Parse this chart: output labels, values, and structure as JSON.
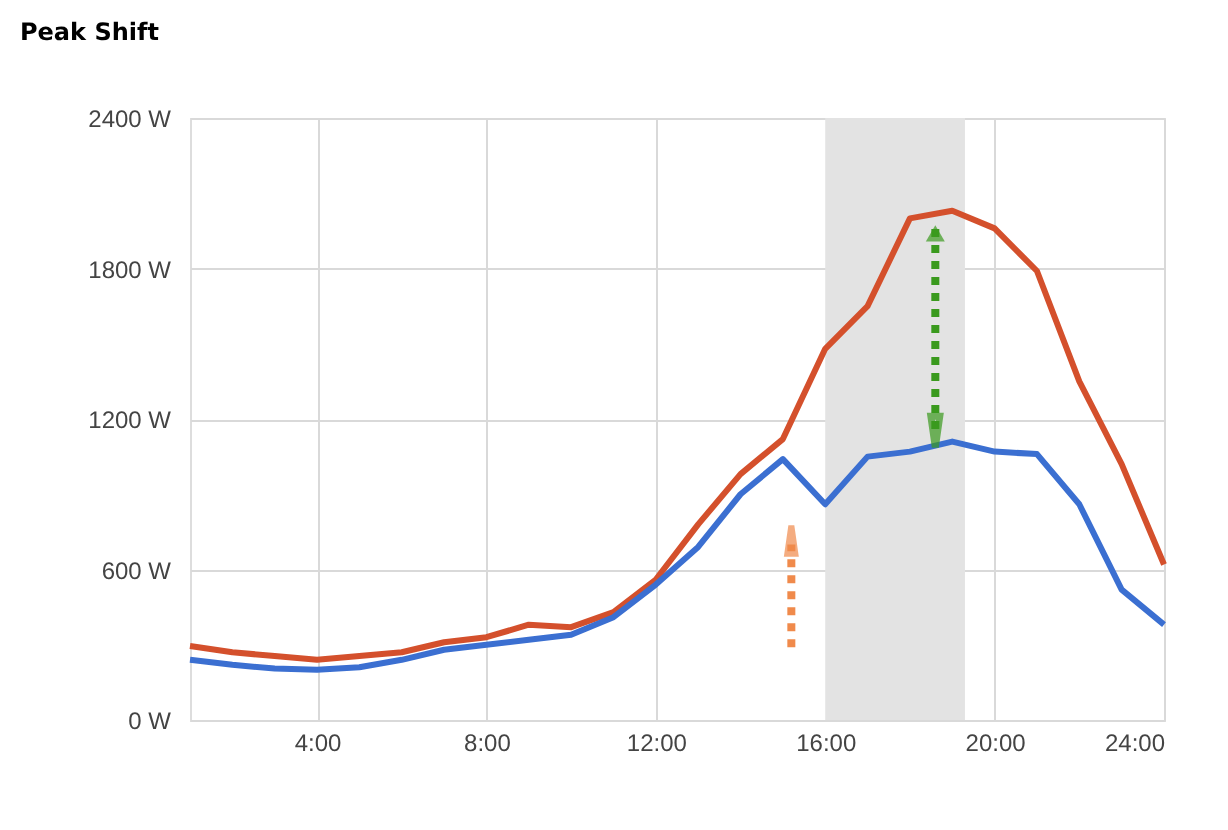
{
  "chart_data": {
    "type": "line",
    "title": "Peak Shift",
    "x": [
      1,
      2,
      3,
      4,
      5,
      6,
      7,
      8,
      9,
      10,
      11,
      12,
      13,
      14,
      15,
      16,
      17,
      18,
      19,
      20,
      21,
      22,
      23,
      24
    ],
    "series": [
      {
        "color": "#d4502c",
        "values": [
          295,
          270,
          255,
          240,
          255,
          270,
          310,
          330,
          380,
          370,
          430,
          560,
          780,
          980,
          1120,
          1480,
          1650,
          2000,
          2030,
          1960,
          1790,
          1350,
          1020,
          620
        ]
      },
      {
        "color": "#3b6fd1",
        "values": [
          240,
          220,
          205,
          200,
          210,
          240,
          280,
          300,
          320,
          340,
          410,
          540,
          690,
          900,
          1040,
          860,
          1050,
          1070,
          1110,
          1070,
          1060,
          860,
          520,
          380
        ]
      }
    ],
    "xlim": [
      1,
      24
    ],
    "xticks": [
      {
        "value": 4,
        "label": "4:00"
      },
      {
        "value": 8,
        "label": "8:00"
      },
      {
        "value": 12,
        "label": "12:00"
      },
      {
        "value": 16,
        "label": "16:00"
      },
      {
        "value": 20,
        "label": "20:00"
      },
      {
        "value": 24,
        "label": "24:00"
      }
    ],
    "ylim": [
      0,
      2400
    ],
    "yticks": [
      {
        "value": 0,
        "label": "0 W"
      },
      {
        "value": 600,
        "label": "600 W"
      },
      {
        "value": 1200,
        "label": "1200 W"
      },
      {
        "value": 1800,
        "label": "1800 W"
      },
      {
        "value": 2400,
        "label": "2400 W"
      }
    ],
    "bands": [
      {
        "axis": "x",
        "from": 16,
        "to": 19.3,
        "color": "#e3e3e3"
      }
    ],
    "grid": true,
    "marker": "none",
    "line_style": "solid"
  }
}
